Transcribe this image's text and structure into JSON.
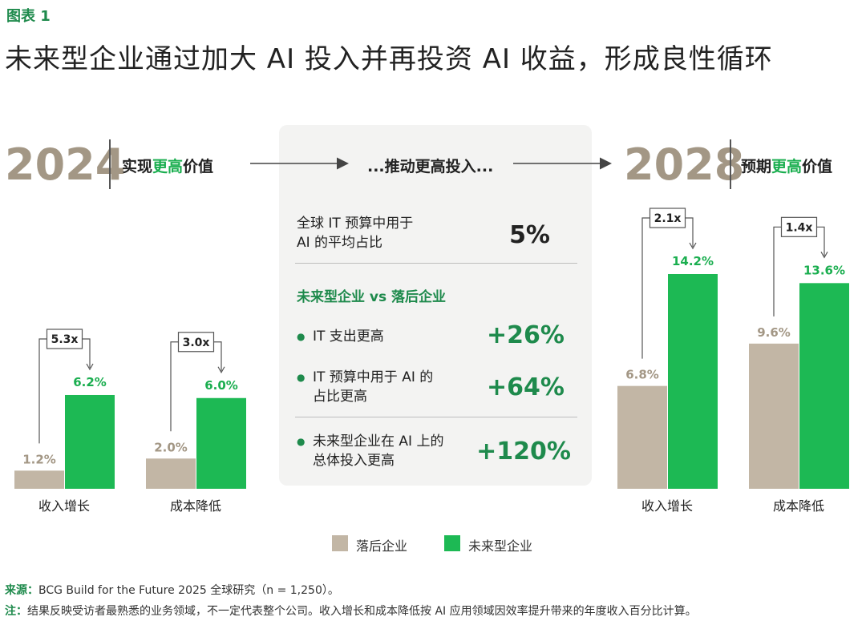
{
  "header": {
    "figure_label": "图表 1",
    "title": "未来型企业通过加大 AI 投入并再投资 AI 收益，形成良性循环"
  },
  "left": {
    "year": "2024",
    "subtitle_pre": "实现",
    "subtitle_hl": "更高",
    "subtitle_post": "价值"
  },
  "right": {
    "year": "2028",
    "subtitle_pre": "预期",
    "subtitle_hl": "更高",
    "subtitle_post": "价值"
  },
  "middle": {
    "heading": "...推动更高投入...",
    "budget_label_1": "全球 IT 预算中用于",
    "budget_label_2": "AI 的平均占比",
    "budget_value": "5%",
    "compare_heading": "未来型企业 vs 落后企业",
    "items": [
      {
        "line1": "IT 支出更高",
        "line2": "",
        "value": "+26%"
      },
      {
        "line1": "IT 预算中用于 AI 的",
        "line2": "占比更高",
        "value": "+64%"
      },
      {
        "line1": "未来型企业在 AI 上的",
        "line2": "总体投入更高",
        "value": "+120%"
      }
    ]
  },
  "colors": {
    "laggard": "#c2b6a5",
    "future": "#1db954",
    "accent_green": "#1e8a4c",
    "year_gray": "#a39785"
  },
  "legend": {
    "laggard": "落后企业",
    "future": "未来型企业"
  },
  "chart_data": [
    {
      "type": "bar",
      "title": "2024",
      "categories": [
        "收入增长",
        "成本降低"
      ],
      "series": [
        {
          "name": "落后企业",
          "values": [
            1.2,
            2.0
          ],
          "labels": [
            "1.2%",
            "2.0%"
          ]
        },
        {
          "name": "未来型企业",
          "values": [
            6.2,
            6.0
          ],
          "labels": [
            "6.2%",
            "6.0%"
          ]
        }
      ],
      "multipliers": [
        "5.3x",
        "3.0x"
      ],
      "ylim": [
        0,
        15
      ]
    },
    {
      "type": "bar",
      "title": "2028",
      "categories": [
        "收入增长",
        "成本降低"
      ],
      "series": [
        {
          "name": "落后企业",
          "values": [
            6.8,
            9.6
          ],
          "labels": [
            "6.8%",
            "9.6%"
          ]
        },
        {
          "name": "未来型企业",
          "values": [
            14.2,
            13.6
          ],
          "labels": [
            "14.2%",
            "13.6%"
          ]
        }
      ],
      "multipliers": [
        "2.1x",
        "1.4x"
      ],
      "ylim": [
        0,
        15
      ]
    }
  ],
  "footer": {
    "source_label": "来源：",
    "source_text": "BCG Build for the Future 2025 全球研究（n = 1,250）。",
    "note_label": "注：",
    "note_text": "结果反映受访者最熟悉的业务领域，不一定代表整个公司。收入增长和成本降低按 AI 应用领域因效率提升带来的年度收入百分比计算。"
  }
}
